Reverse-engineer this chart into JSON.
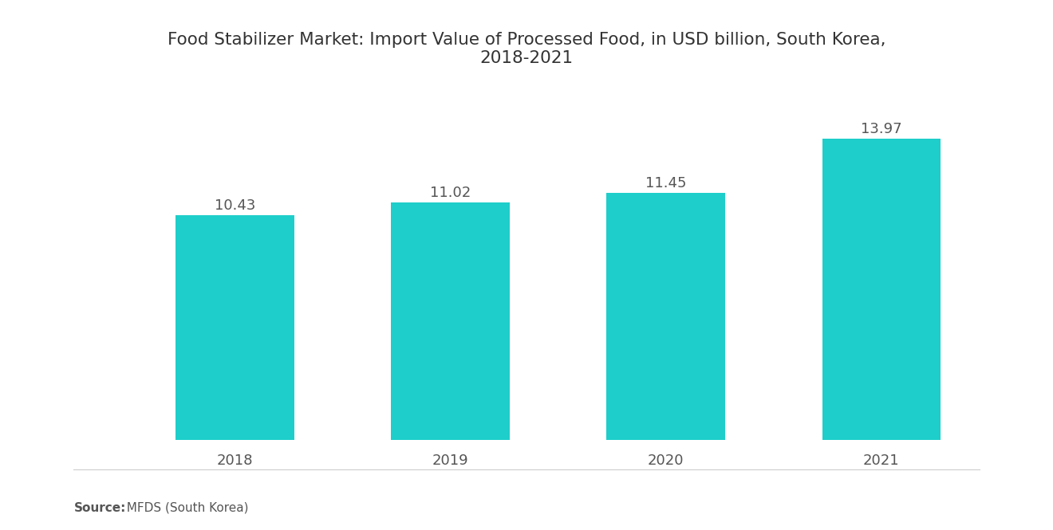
{
  "title_line1": "Food Stabilizer Market: Import Value of Processed Food, in USD billion, South Korea,",
  "title_line2": "2018-2021",
  "categories": [
    "2018",
    "2019",
    "2020",
    "2021"
  ],
  "values": [
    10.43,
    11.02,
    11.45,
    13.97
  ],
  "bar_color": "#1ECECA",
  "background_color": "#ffffff",
  "title_fontsize": 15.5,
  "label_fontsize": 13,
  "tick_fontsize": 13,
  "source_bold": "Source:",
  "source_rest": "  MFDS (South Korea)",
  "ylim": [
    0,
    15.5
  ],
  "bar_width": 0.55
}
